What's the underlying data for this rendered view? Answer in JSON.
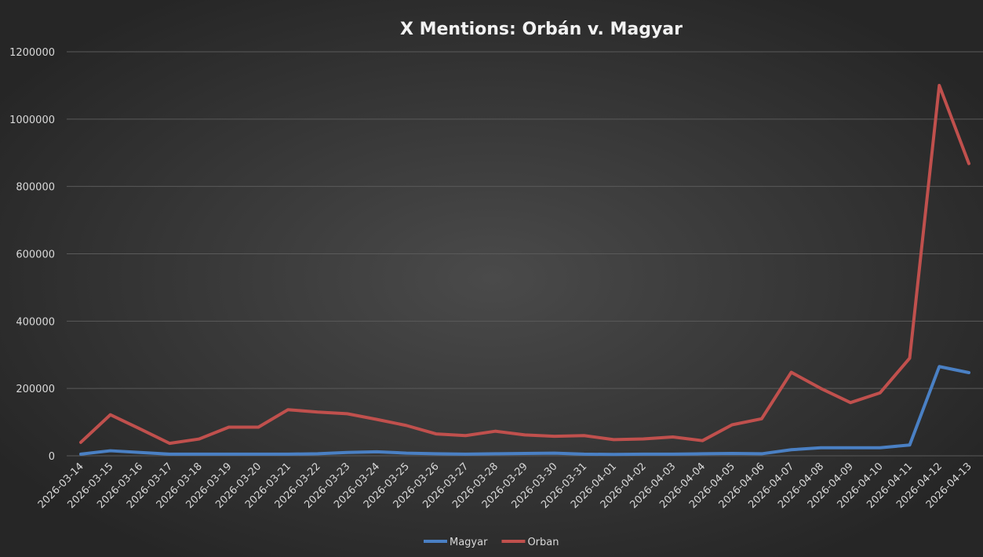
{
  "chart_data": {
    "type": "line",
    "title": "X Mentions: Orbán v. Magyar",
    "categories": [
      "2026-03-14",
      "2026-03-15",
      "2026-03-16",
      "2026-03-17",
      "2026-03-18",
      "2026-03-19",
      "2026-03-20",
      "2026-03-21",
      "2026-03-22",
      "2026-03-23",
      "2026-03-24",
      "2026-03-25",
      "2026-03-26",
      "2026-03-27",
      "2026-03-28",
      "2026-03-29",
      "2026-03-30",
      "2026-03-31",
      "2026-04-01",
      "2026-04-02",
      "2026-04-03",
      "2026-04-04",
      "2026-04-05",
      "2026-04-06",
      "2026-04-07",
      "2026-04-08",
      "2026-04-09",
      "2026-04-10",
      "2026-04-11",
      "2026-04-12",
      "2026-04-13"
    ],
    "series": [
      {
        "name": "Magyar",
        "color": "#4a80c4",
        "values": [
          5000,
          15000,
          10000,
          5000,
          5000,
          5000,
          5000,
          5000,
          6000,
          10000,
          12000,
          8000,
          6000,
          5000,
          6000,
          7000,
          8000,
          5000,
          4000,
          5000,
          5000,
          6000,
          7000,
          6000,
          18000,
          24000,
          24000,
          24000,
          32000,
          265000,
          247000
        ]
      },
      {
        "name": "Orban",
        "color": "#c0504d",
        "values": [
          40000,
          122000,
          80000,
          37000,
          50000,
          85000,
          85000,
          137000,
          130000,
          125000,
          108000,
          90000,
          65000,
          60000,
          73000,
          62000,
          58000,
          60000,
          48000,
          50000,
          56000,
          45000,
          92000,
          110000,
          248000,
          200000,
          158000,
          187000,
          290000,
          1100000,
          868000
        ]
      }
    ],
    "ylim": [
      0,
      1200000
    ],
    "yticks": [
      0,
      200000,
      400000,
      600000,
      800000,
      1000000,
      1200000
    ],
    "grid": true,
    "legend": "bottom"
  }
}
